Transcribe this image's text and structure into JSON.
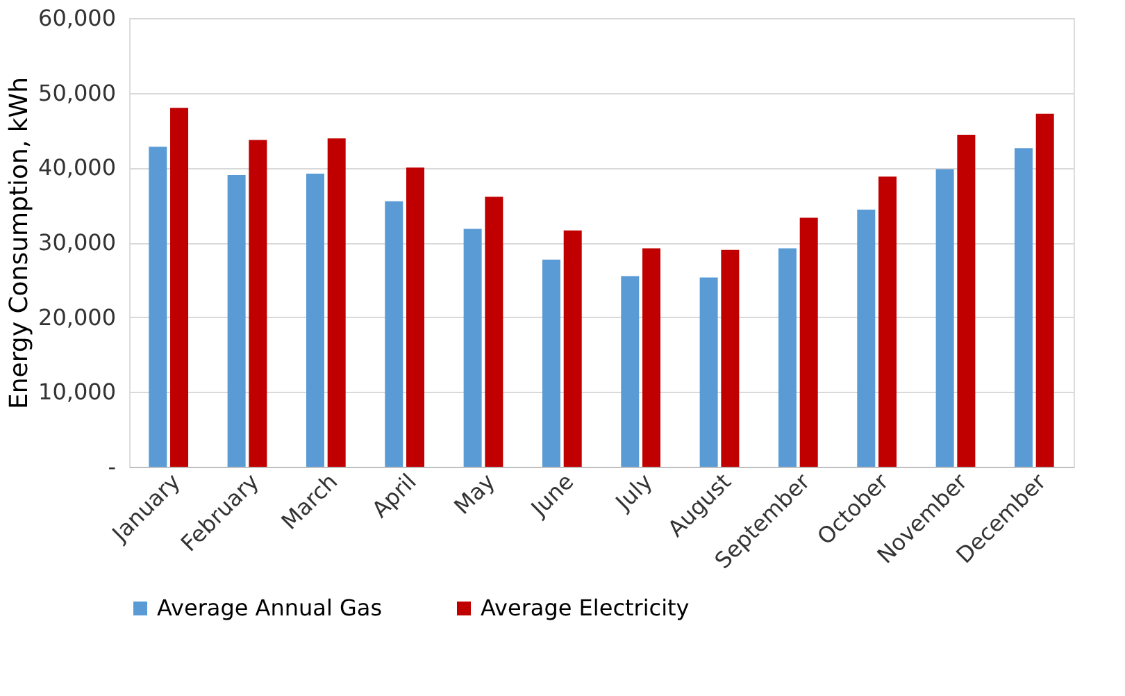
{
  "chart_data": {
    "type": "bar",
    "ylabel": "Energy Consumption, kWh",
    "categories": [
      "January",
      "February",
      "March",
      "April",
      "May",
      "June",
      "July",
      "August",
      "September",
      "October",
      "November",
      "December"
    ],
    "series": [
      {
        "name": "Average Annual Gas",
        "color": "#5b9bd5",
        "values": [
          42800,
          39000,
          39200,
          35500,
          31800,
          27700,
          25500,
          25300,
          29200,
          34400,
          39800,
          42600
        ]
      },
      {
        "name": "Average Electricity",
        "color": "#c00000",
        "values": [
          48000,
          43700,
          43900,
          40000,
          36100,
          31600,
          29200,
          29000,
          33300,
          38800,
          44400,
          47200
        ]
      }
    ],
    "ylim": [
      0,
      60000
    ],
    "yticks": [
      {
        "value": 0,
        "label": "-"
      },
      {
        "value": 10000,
        "label": "10,000"
      },
      {
        "value": 20000,
        "label": "20,000"
      },
      {
        "value": 30000,
        "label": "30,000"
      },
      {
        "value": 40000,
        "label": "40,000"
      },
      {
        "value": 50000,
        "label": "50,000"
      },
      {
        "value": 60000,
        "label": "60,000"
      }
    ],
    "grid": "y",
    "legend": "bottom"
  }
}
